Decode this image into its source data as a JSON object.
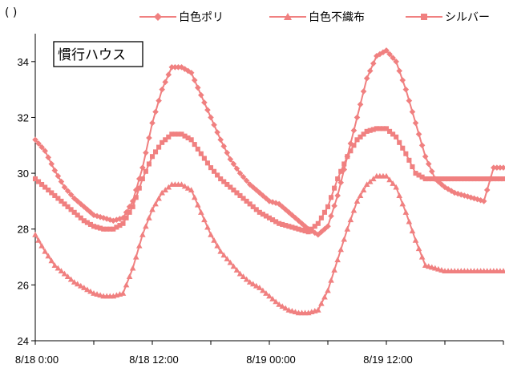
{
  "chart_data": {
    "type": "line",
    "unit_label": "( )",
    "annotation": "慣行ハウス",
    "ylim": [
      24,
      35
    ],
    "yticks": [
      24,
      26,
      28,
      30,
      32,
      34
    ],
    "xlim": [
      0,
      48
    ],
    "x_ticks": [
      {
        "x": 0,
        "label": "8/18  0:00"
      },
      {
        "x": 12,
        "label": "8/18  12:00"
      },
      {
        "x": 24,
        "label": "8/19  00:00"
      },
      {
        "x": 36,
        "label": "8/19  12:00"
      }
    ],
    "line_color": "#f08080",
    "legend_position": "top-right",
    "x": [
      0,
      1,
      2,
      3,
      4,
      5,
      6,
      7,
      8,
      9,
      10,
      11,
      12,
      13,
      14,
      15,
      16,
      17,
      18,
      19,
      20,
      21,
      22,
      23,
      24,
      25,
      26,
      27,
      28,
      29,
      30,
      31,
      32,
      33,
      34,
      35,
      36,
      37,
      38,
      39,
      40,
      41,
      42,
      43,
      44,
      45,
      46,
      47,
      48
    ],
    "series": [
      {
        "name": "白色ポリ",
        "marker": "diamond",
        "values": [
          31.2,
          30.8,
          30.1,
          29.5,
          29.1,
          28.8,
          28.5,
          28.4,
          28.3,
          28.4,
          29.0,
          30.2,
          31.8,
          33.0,
          33.8,
          33.8,
          33.6,
          32.8,
          32.0,
          31.2,
          30.5,
          30.0,
          29.6,
          29.3,
          29.0,
          28.9,
          28.6,
          28.3,
          28.0,
          27.8,
          28.1,
          29.2,
          30.6,
          32.0,
          33.4,
          34.2,
          34.4,
          34.0,
          33.0,
          31.8,
          30.6,
          29.8,
          29.5,
          29.3,
          29.2,
          29.1,
          29.0,
          30.2,
          30.2
        ]
      },
      {
        "name": "白色不織布",
        "marker": "triangle",
        "values": [
          27.8,
          27.2,
          26.7,
          26.4,
          26.1,
          25.9,
          25.7,
          25.6,
          25.6,
          25.7,
          26.6,
          27.8,
          28.7,
          29.3,
          29.6,
          29.6,
          29.4,
          28.6,
          27.8,
          27.2,
          26.8,
          26.4,
          26.1,
          25.9,
          25.6,
          25.3,
          25.1,
          25.0,
          25.0,
          25.1,
          25.8,
          26.9,
          28.0,
          29.0,
          29.6,
          29.9,
          29.9,
          29.5,
          28.6,
          27.6,
          26.7,
          26.6,
          26.5,
          26.5,
          26.5,
          26.5,
          26.5,
          26.5,
          26.5
        ]
      },
      {
        "name": "シルバー",
        "marker": "square",
        "values": [
          29.8,
          29.5,
          29.2,
          28.9,
          28.6,
          28.3,
          28.1,
          28.0,
          28.0,
          28.2,
          28.8,
          29.8,
          30.6,
          31.1,
          31.4,
          31.4,
          31.2,
          30.7,
          30.2,
          29.8,
          29.5,
          29.2,
          28.9,
          28.6,
          28.4,
          28.2,
          28.1,
          28.0,
          27.9,
          28.2,
          28.8,
          29.8,
          30.6,
          31.2,
          31.5,
          31.6,
          31.6,
          31.3,
          30.7,
          30.0,
          29.8,
          29.8,
          29.8,
          29.8,
          29.8,
          29.8,
          29.8,
          29.8,
          29.8
        ]
      }
    ]
  }
}
